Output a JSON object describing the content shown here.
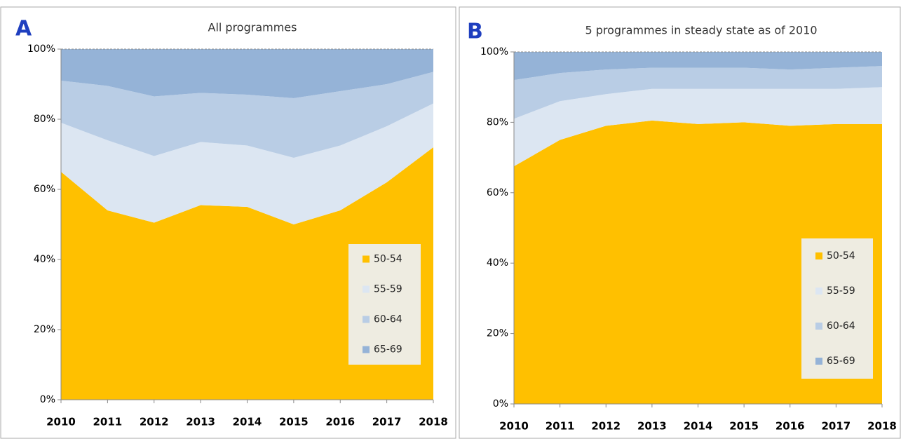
{
  "chart_data": [
    {
      "type": "area",
      "label": "A",
      "title": "All programmes",
      "x": [
        2010,
        2011,
        2012,
        2013,
        2014,
        2015,
        2016,
        2017,
        2018
      ],
      "xlim": [
        2010,
        2018
      ],
      "xticks": [
        2010,
        2011,
        2012,
        2013,
        2014,
        2015,
        2016,
        2017,
        2018
      ],
      "ylim": [
        0,
        100
      ],
      "yticks": [
        {
          "value": 0,
          "label": "0%"
        },
        {
          "value": 20,
          "label": "20%"
        },
        {
          "value": 40,
          "label": "40%"
        },
        {
          "value": 60,
          "label": "60%"
        },
        {
          "value": 80,
          "label": "80%"
        },
        {
          "value": 100,
          "label": "100%"
        }
      ],
      "stacked": true,
      "legend": "lower right",
      "series": [
        {
          "name": "50-54",
          "color": "#ffc000",
          "values": [
            65,
            54,
            50.5,
            55.5,
            55,
            50,
            54,
            62,
            72
          ]
        },
        {
          "name": "55-59",
          "color": "#dce6f2",
          "values": [
            14,
            20,
            19,
            18,
            17.5,
            19,
            18.5,
            16,
            12.5
          ]
        },
        {
          "name": "60-64",
          "color": "#b9cde5",
          "values": [
            12,
            15.5,
            17,
            14,
            14.5,
            17,
            15.5,
            12,
            9
          ]
        },
        {
          "name": "65-69",
          "color": "#95b3d7",
          "values": [
            9,
            10.5,
            13.5,
            12.5,
            13,
            14,
            12,
            10,
            6.5
          ]
        }
      ]
    },
    {
      "type": "area",
      "label": "B",
      "title": "5 programmes in steady state as of 2010",
      "x": [
        2010,
        2011,
        2012,
        2013,
        2014,
        2015,
        2016,
        2017,
        2018
      ],
      "xlim": [
        2010,
        2018
      ],
      "xticks": [
        2010,
        2011,
        2012,
        2013,
        2014,
        2015,
        2016,
        2017,
        2018
      ],
      "ylim": [
        0,
        100
      ],
      "yticks": [
        {
          "value": 0,
          "label": "0%"
        },
        {
          "value": 20,
          "label": "20%"
        },
        {
          "value": 40,
          "label": "40%"
        },
        {
          "value": 60,
          "label": "60%"
        },
        {
          "value": 80,
          "label": "80%"
        },
        {
          "value": 100,
          "label": "100%"
        }
      ],
      "stacked": true,
      "legend": "lower right",
      "series": [
        {
          "name": "50-54",
          "color": "#ffc000",
          "values": [
            67.5,
            75,
            79,
            80.5,
            79.5,
            80,
            79,
            79.5,
            79.5
          ]
        },
        {
          "name": "55-59",
          "color": "#dce6f2",
          "values": [
            13.5,
            11,
            9,
            9,
            10,
            9.5,
            10.5,
            10,
            10.5
          ]
        },
        {
          "name": "60-64",
          "color": "#b9cde5",
          "values": [
            11,
            8,
            7,
            6,
            6,
            6,
            5.5,
            6,
            6
          ]
        },
        {
          "name": "65-69",
          "color": "#95b3d7",
          "values": [
            8,
            6,
            5,
            4.5,
            4.5,
            4.5,
            5,
            4.5,
            4
          ]
        }
      ]
    }
  ]
}
